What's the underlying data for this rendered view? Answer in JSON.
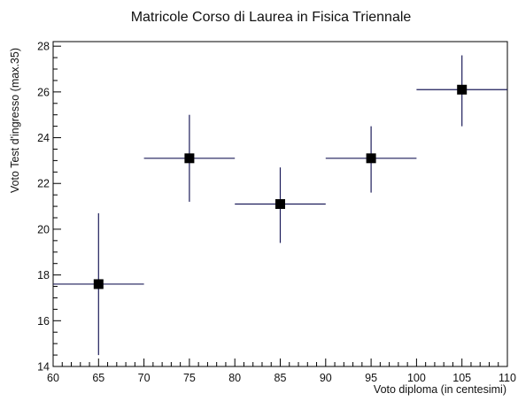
{
  "chart_data": {
    "type": "scatter",
    "title": "Matricole Corso di Laurea in Fisica Triennale",
    "xlabel": "Voto diploma (in centesimi)",
    "ylabel": "Voto Test d'ingresso (max.35)",
    "xlim": [
      60,
      110
    ],
    "ylim": [
      14,
      28.2
    ],
    "x_ticks": [
      60,
      65,
      70,
      75,
      80,
      85,
      90,
      95,
      100,
      105,
      110
    ],
    "y_ticks": [
      14,
      16,
      18,
      20,
      22,
      24,
      26,
      28
    ],
    "grid": false,
    "marker": "square",
    "colors": {
      "marker": "#000000",
      "error_bar": "#1c1c5a"
    },
    "points": [
      {
        "x": 65,
        "y": 17.6,
        "x_low": 60,
        "x_high": 70,
        "y_low": 14.5,
        "y_high": 20.7
      },
      {
        "x": 75,
        "y": 23.1,
        "x_low": 70,
        "x_high": 80,
        "y_low": 21.2,
        "y_high": 25.0
      },
      {
        "x": 85,
        "y": 21.1,
        "x_low": 80,
        "x_high": 90,
        "y_low": 19.4,
        "y_high": 22.7
      },
      {
        "x": 95,
        "y": 23.1,
        "x_low": 90,
        "x_high": 100,
        "y_low": 21.6,
        "y_high": 24.5
      },
      {
        "x": 105,
        "y": 26.1,
        "x_low": 100,
        "x_high": 110,
        "y_low": 24.5,
        "y_high": 27.6
      }
    ]
  }
}
